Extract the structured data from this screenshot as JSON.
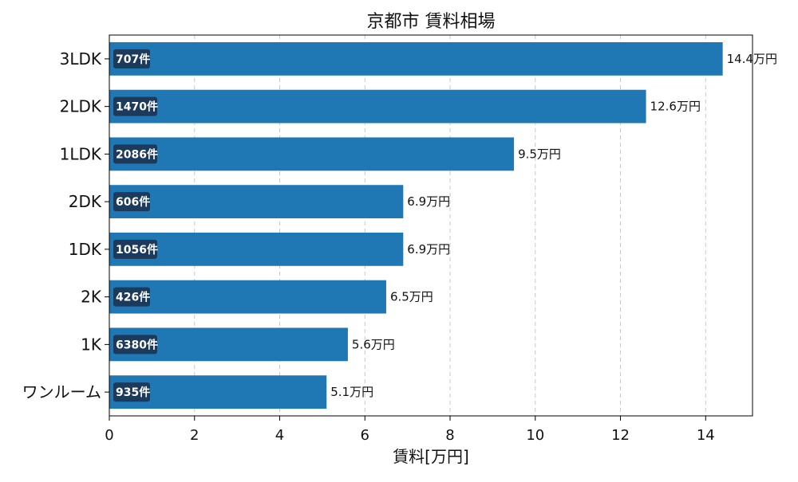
{
  "chart_data": {
    "type": "bar",
    "orientation": "horizontal",
    "title": "京都市 賃料相場",
    "xlabel": "賃料[万円]",
    "ylabel": "",
    "xlim": [
      0,
      15.1
    ],
    "x_ticks": [
      0,
      2,
      4,
      6,
      8,
      10,
      12,
      14
    ],
    "grid": "vertical-dashed",
    "categories": [
      "3LDK",
      "2LDK",
      "1LDK",
      "2DK",
      "1DK",
      "2K",
      "1K",
      "ワンルーム"
    ],
    "values": [
      14.4,
      12.6,
      9.5,
      6.9,
      6.9,
      6.5,
      5.6,
      5.1
    ],
    "value_labels": [
      "14.4万円",
      "12.6万円",
      "9.5万円",
      "6.9万円",
      "6.9万円",
      "6.5万円",
      "5.6万円",
      "5.1万円"
    ],
    "counts": [
      "707件",
      "1470件",
      "2086件",
      "606件",
      "1056件",
      "426件",
      "6380件",
      "935件"
    ],
    "colors": {
      "bar": "#1f77b4",
      "count_badge": "#1b3a5c"
    }
  }
}
